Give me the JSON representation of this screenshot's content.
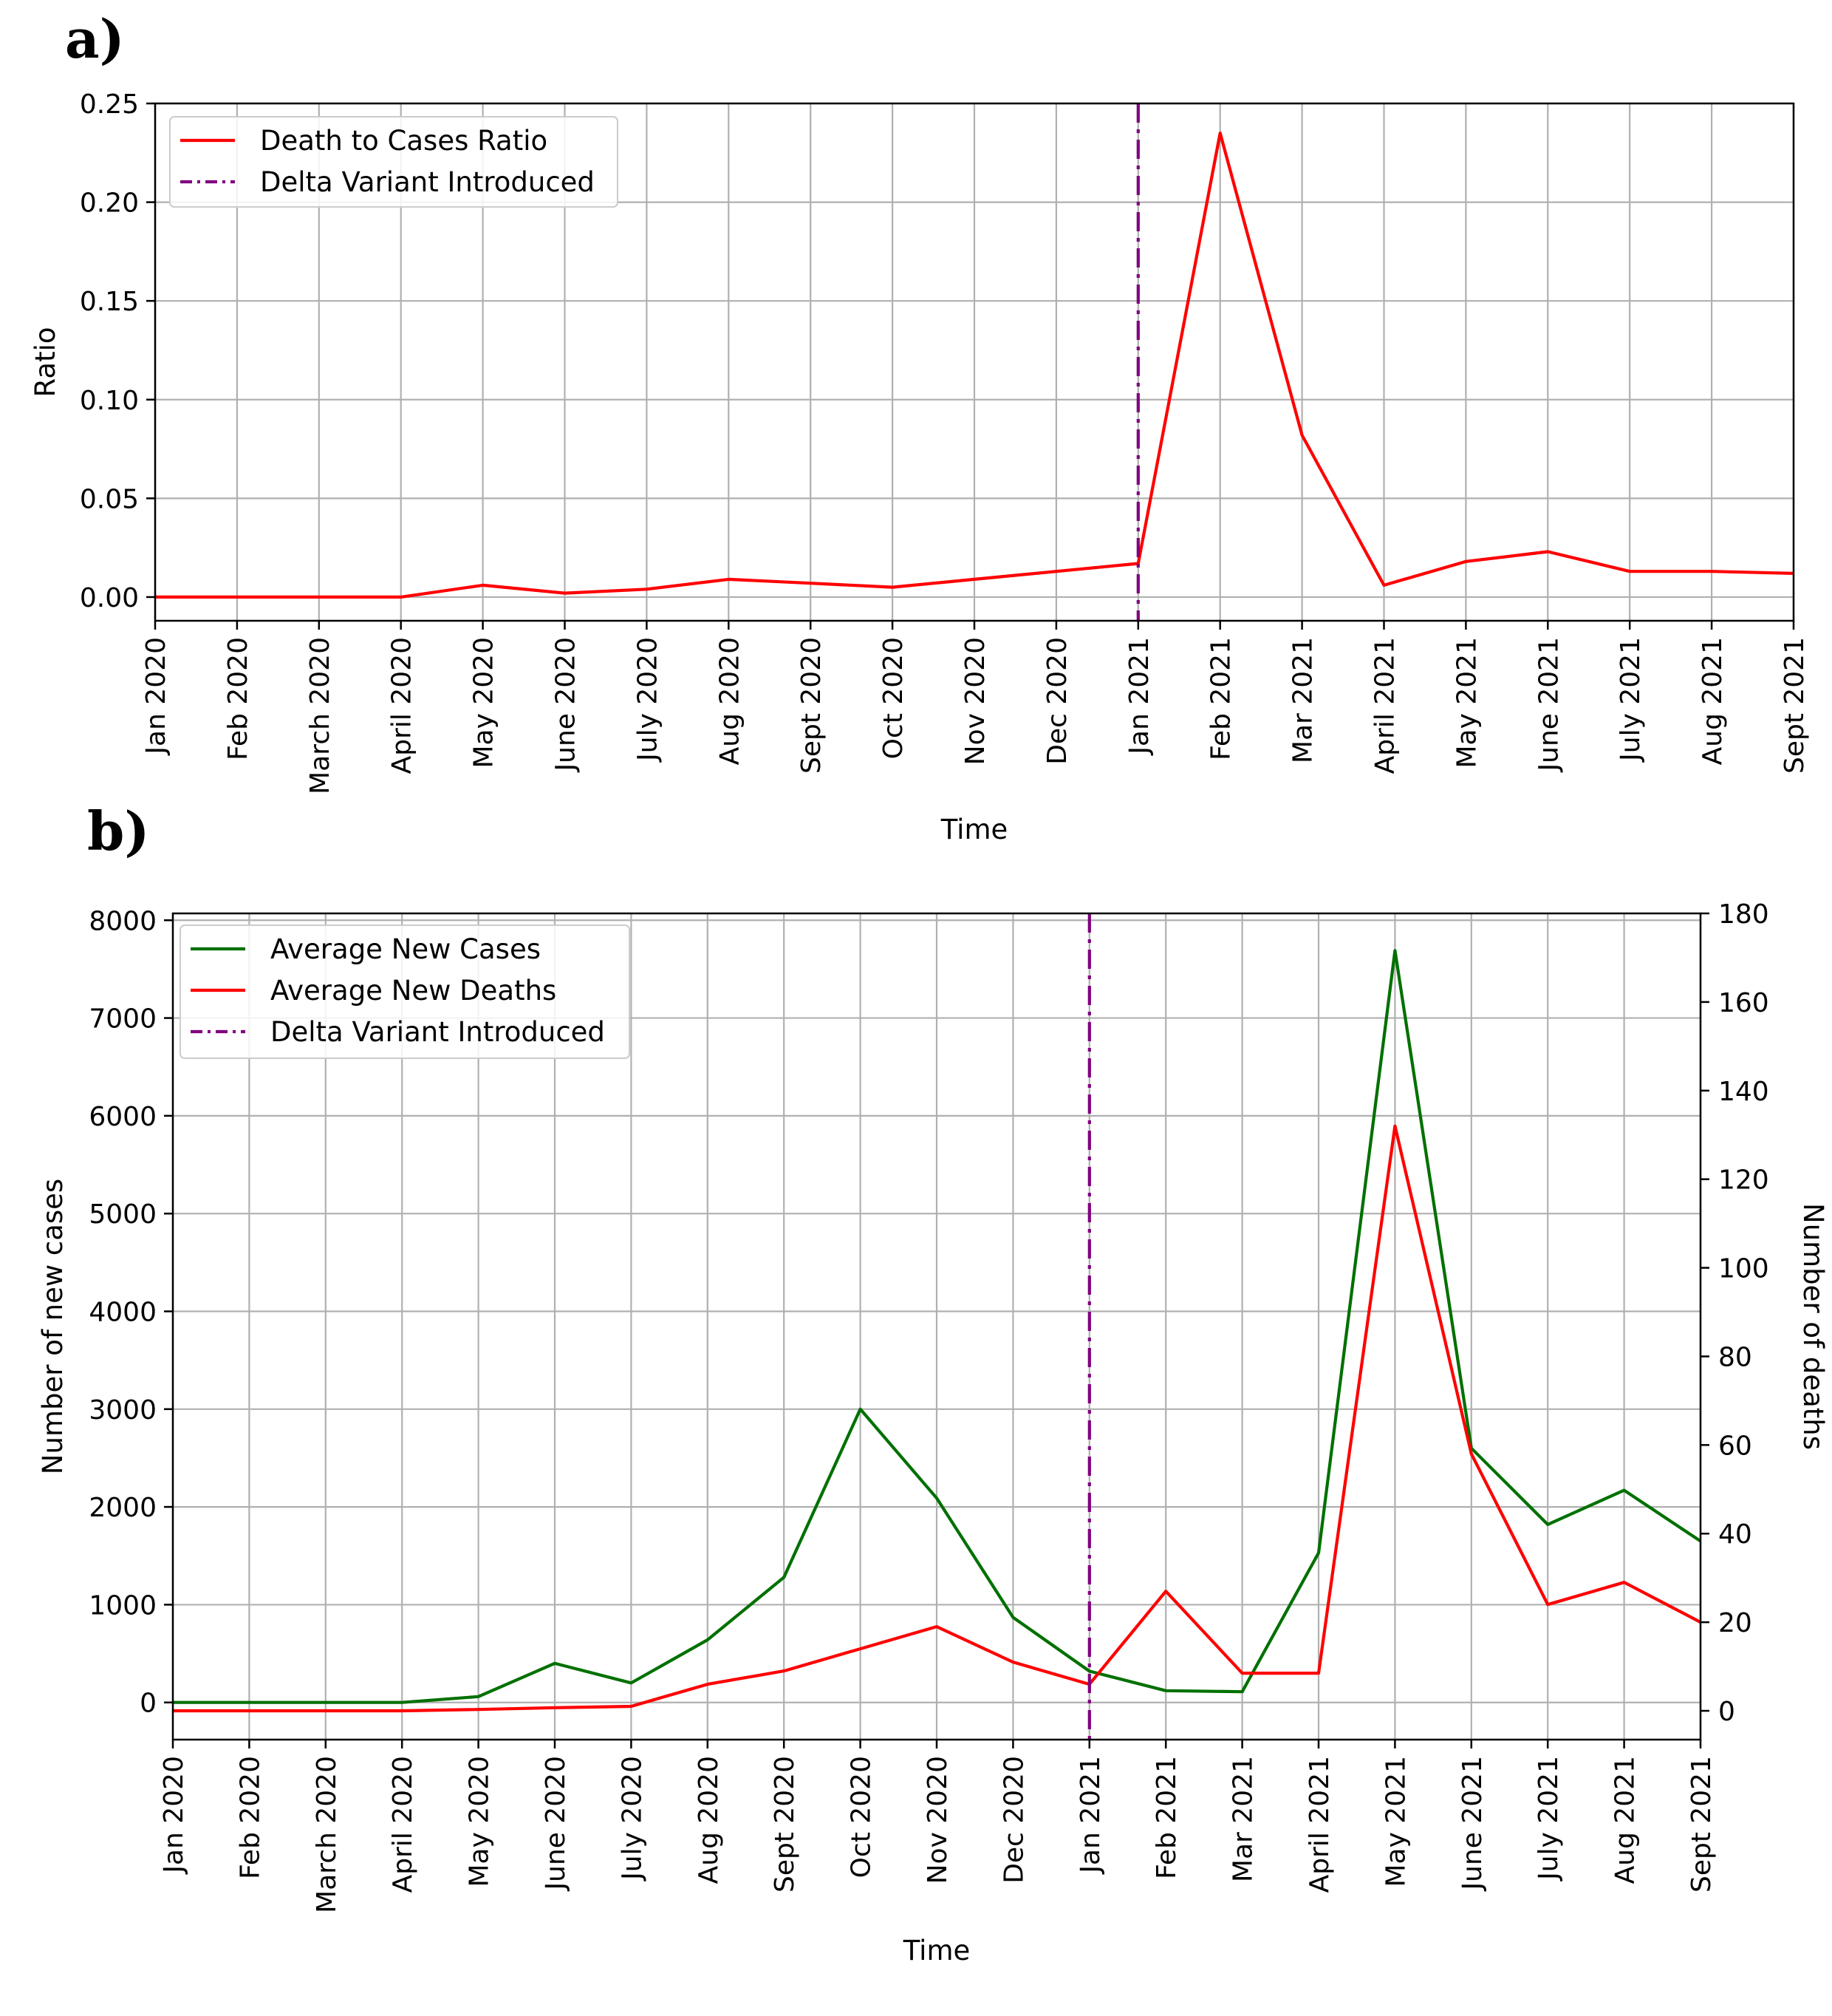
{
  "panels": [
    {
      "label": "a)"
    },
    {
      "label": "b)"
    }
  ],
  "chart_data": [
    {
      "type": "line",
      "panel": "a)",
      "xlabel": "Time",
      "ylabel": "Ratio",
      "categories": [
        "Jan 2020",
        "Feb 2020",
        "March 2020",
        "April 2020",
        "May 2020",
        "June 2020",
        "July 2020",
        "Aug 2020",
        "Sept 2020",
        "Oct 2020",
        "Nov 2020",
        "Dec 2020",
        "Jan 2021",
        "Feb 2021",
        "Mar 2021",
        "April 2021",
        "May 2021",
        "June 2021",
        "July 2021",
        "Aug 2021",
        "Sept 2021"
      ],
      "ylim": [
        -0.012,
        0.25
      ],
      "yticks": [
        "0.00",
        "0.05",
        "0.10",
        "0.15",
        "0.20",
        "0.25"
      ],
      "grid": true,
      "legend_position": "top-left",
      "series": [
        {
          "name": "Death to Cases Ratio",
          "color": "#ff0000",
          "style": "solid",
          "values": [
            0.0,
            0.0,
            0.0,
            0.0,
            0.006,
            0.002,
            0.004,
            0.009,
            0.007,
            0.005,
            0.009,
            0.013,
            0.017,
            0.235,
            0.082,
            0.006,
            0.018,
            0.023,
            0.013,
            0.013,
            0.012
          ]
        }
      ],
      "vlines": [
        {
          "name": "Delta Variant Introduced",
          "x": "Jan 2021",
          "color": "#800080",
          "style": "dashdot"
        }
      ]
    },
    {
      "type": "line",
      "panel": "b)",
      "xlabel": "Time",
      "ylabel": "Number of new cases",
      "ylabel_right": "Number of deaths",
      "categories": [
        "Jan 2020",
        "Feb 2020",
        "March 2020",
        "April 2020",
        "May 2020",
        "June 2020",
        "July 2020",
        "Aug 2020",
        "Sept 2020",
        "Oct 2020",
        "Nov 2020",
        "Dec 2020",
        "Jan 2021",
        "Feb 2021",
        "Mar 2021",
        "April 2021",
        "May 2021",
        "June 2021",
        "July 2021",
        "Aug 2021",
        "Sept 2021"
      ],
      "ylim": [
        -380,
        8070
      ],
      "yticks": [
        "0",
        "1000",
        "2000",
        "3000",
        "4000",
        "5000",
        "6000",
        "7000",
        "8000"
      ],
      "ylim_right": [
        -6.5,
        180
      ],
      "yticks_right": [
        "0",
        "20",
        "40",
        "60",
        "80",
        "100",
        "120",
        "140",
        "160",
        "180"
      ],
      "grid": true,
      "legend_position": "top-left",
      "series": [
        {
          "name": "Average New Cases",
          "axis": "left",
          "color": "#007000",
          "style": "solid",
          "values": [
            0,
            0,
            0,
            0,
            60,
            400,
            200,
            640,
            1280,
            3000,
            2090,
            870,
            320,
            120,
            110,
            1530,
            7690,
            2600,
            1820,
            2170,
            1650
          ]
        },
        {
          "name": "Average New Deaths",
          "axis": "right",
          "color": "#ff0000",
          "style": "solid",
          "values": [
            0,
            0,
            0,
            0,
            0.3,
            0.7,
            1,
            6,
            9,
            14,
            19,
            11,
            6,
            27,
            8.5,
            8.5,
            132,
            58,
            24,
            29,
            20
          ]
        }
      ],
      "vlines": [
        {
          "name": "Delta Variant Introduced",
          "x": "Jan 2021",
          "color": "#800080",
          "style": "dashdot"
        }
      ]
    }
  ]
}
